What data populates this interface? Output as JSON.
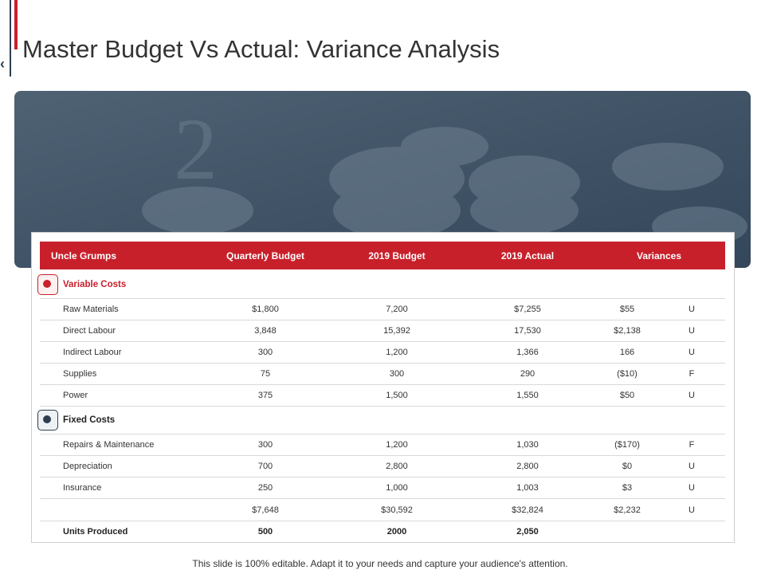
{
  "title": "Master Budget Vs Actual: Variance Analysis",
  "table": {
    "header": [
      "Uncle Grumps",
      "Quarterly Budget",
      "2019 Budget",
      "2019  Actual",
      "Variances"
    ],
    "sections": [
      {
        "title": "Variable Costs",
        "rows": [
          {
            "label": "Raw Materials",
            "cells": [
              "$1,800",
              "7,200",
              "$7,255",
              "$55",
              "U"
            ]
          },
          {
            "label": "Direct Labour",
            "cells": [
              "3,848",
              "15,392",
              "17,530",
              "$2,138",
              "U"
            ]
          },
          {
            "label": "Indirect Labour",
            "cells": [
              "300",
              "1,200",
              "1,366",
              "166",
              "U"
            ]
          },
          {
            "label": "Supplies",
            "cells": [
              "75",
              "300",
              "290",
              "($10)",
              "F"
            ]
          },
          {
            "label": "Power",
            "cells": [
              "375",
              "1,500",
              "1,550",
              "$50",
              "U"
            ]
          }
        ]
      },
      {
        "title": "Fixed Costs",
        "rows": [
          {
            "label": "Repairs & Maintenance",
            "cells": [
              "300",
              "1,200",
              "1,030",
              "($170)",
              "F"
            ]
          },
          {
            "label": "Depreciation",
            "cells": [
              "700",
              "2,800",
              "2,800",
              "$0",
              "U"
            ]
          },
          {
            "label": "Insurance",
            "cells": [
              "250",
              "1,000",
              "1,003",
              "$3",
              "U"
            ]
          }
        ]
      }
    ],
    "total": {
      "cells": [
        "$7,648",
        "$30,592",
        "$32,824",
        "$2,232",
        "U"
      ]
    },
    "units": {
      "label": "Units Produced",
      "cells": [
        "500",
        "2000",
        "2,050"
      ]
    }
  },
  "footer": "This slide is 100% editable. Adapt it to your needs and capture your audience's attention."
}
